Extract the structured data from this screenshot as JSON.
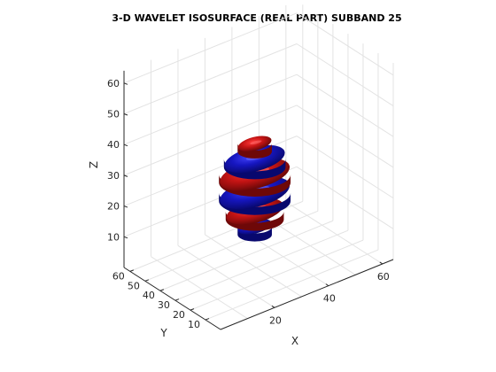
{
  "chart_data": {
    "type": "isosurface-3d",
    "title": "3-D WAVELET ISOSURFACE (REAL PART) SUBBAND 25",
    "xlabel": "X",
    "ylabel": "Y",
    "zlabel": "Z",
    "x_ticks": [
      "20",
      "40",
      "60"
    ],
    "y_ticks": [
      "10",
      "20",
      "30",
      "40",
      "50",
      "60"
    ],
    "z_ticks": [
      "10",
      "20",
      "30",
      "40",
      "50",
      "60"
    ],
    "xlim": [
      0,
      64
    ],
    "ylim": [
      0,
      64
    ],
    "zlim": [
      0,
      64
    ],
    "grid": true,
    "colors": {
      "positive": "#b01010",
      "negative": "#1414b4"
    },
    "bands": [
      {
        "sign": "negative",
        "z": 13
      },
      {
        "sign": "positive",
        "z": 18
      },
      {
        "sign": "negative",
        "z": 24
      },
      {
        "sign": "positive",
        "z": 30
      },
      {
        "sign": "negative",
        "z": 35
      },
      {
        "sign": "positive",
        "z": 40
      }
    ]
  }
}
